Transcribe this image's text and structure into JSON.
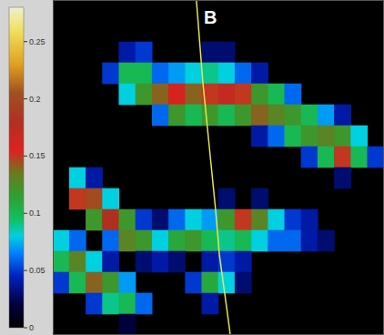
{
  "chart_data": {
    "type": "heatmap",
    "panel_label": "B",
    "xlim": [
      0,
      20
    ],
    "ylim": [
      0,
      16
    ],
    "yticks": [
      1.5,
      3,
      4.5,
      6,
      7.5,
      9,
      10.5,
      12,
      13.5,
      15
    ],
    "grid": true,
    "tick_labels": false,
    "cells": [
      [
        0,
        0,
        0,
        0,
        0,
        0,
        0,
        0,
        0,
        0,
        0,
        0,
        0,
        0,
        0,
        0,
        0,
        0,
        0,
        0
      ],
      [
        0,
        0,
        0,
        0,
        0,
        0,
        0,
        0,
        0,
        0,
        0,
        0,
        0,
        0,
        0,
        0,
        0,
        0,
        0,
        0
      ],
      [
        0,
        0,
        0,
        0,
        0.04,
        0.05,
        0,
        0,
        0,
        0.03,
        0.03,
        0,
        0,
        0,
        0,
        0,
        0,
        0,
        0,
        0
      ],
      [
        0,
        0,
        0,
        0.05,
        0.1,
        0.1,
        0.06,
        0.07,
        0.08,
        0.09,
        0.08,
        0.06,
        0.04,
        0,
        0,
        0,
        0,
        0,
        0,
        0
      ],
      [
        0,
        0,
        0,
        0,
        0.08,
        0.12,
        0.14,
        0.16,
        0.14,
        0.15,
        0.17,
        0.15,
        0.12,
        0.1,
        0.06,
        0,
        0,
        0,
        0,
        0
      ],
      [
        0,
        0,
        0,
        0,
        0,
        0,
        0.06,
        0.12,
        0.1,
        0.12,
        0.1,
        0.12,
        0.14,
        0.13,
        0.12,
        0.1,
        0.07,
        0.04,
        0,
        0
      ],
      [
        0,
        0,
        0,
        0,
        0,
        0,
        0,
        0,
        0,
        0,
        0,
        0,
        0.04,
        0.06,
        0.1,
        0.12,
        0.13,
        0.12,
        0.08,
        0
      ],
      [
        0,
        0,
        0,
        0,
        0,
        0,
        0,
        0,
        0,
        0,
        0,
        0,
        0,
        0,
        0,
        0.05,
        0.1,
        0.15,
        0.1,
        0.05
      ],
      [
        0,
        0.08,
        0.04,
        0,
        0,
        0,
        0,
        0,
        0,
        0,
        0,
        0,
        0,
        0,
        0,
        0,
        0,
        0.03,
        0,
        0
      ],
      [
        0,
        0.15,
        0.2,
        0.08,
        0,
        0,
        0,
        0,
        0,
        0,
        0.03,
        0,
        0.03,
        0,
        0,
        0,
        0,
        0,
        0,
        0
      ],
      [
        0,
        0,
        0.12,
        0.18,
        0.12,
        0.05,
        0.03,
        0.06,
        0.08,
        0.07,
        0.12,
        0.15,
        0.13,
        0.08,
        0.05,
        0.04,
        0,
        0,
        0,
        0
      ],
      [
        0.08,
        0.06,
        0,
        0.06,
        0.13,
        0.12,
        0.08,
        0.11,
        0.12,
        0.1,
        0.09,
        0.1,
        0.08,
        0.06,
        0.06,
        0.04,
        0.03,
        0,
        0,
        0
      ],
      [
        0.1,
        0.13,
        0.08,
        0.04,
        0,
        0.03,
        0.04,
        0.03,
        0,
        0.04,
        0.05,
        0.04,
        0,
        0,
        0,
        0,
        0,
        0,
        0,
        0
      ],
      [
        0.05,
        0.1,
        0.14,
        0.12,
        0.07,
        0,
        0,
        0,
        0.05,
        0.11,
        0.08,
        0.03,
        0,
        0,
        0,
        0,
        0,
        0,
        0,
        0
      ],
      [
        0,
        0,
        0.05,
        0.09,
        0.1,
        0.06,
        0,
        0,
        0,
        0.04,
        0,
        0,
        0,
        0,
        0,
        0,
        0,
        0,
        0,
        0
      ],
      [
        0,
        0,
        0,
        0,
        0.02,
        0,
        0,
        0,
        0,
        0,
        0,
        0,
        0,
        0,
        0,
        0,
        0,
        0,
        0,
        0
      ]
    ],
    "colorbar": {
      "range": [
        0,
        0.28
      ],
      "ticks": [
        0,
        0.05,
        0.1,
        0.15,
        0.2,
        0.25
      ]
    },
    "series": [
      {
        "type": "line",
        "color": "#e6e64a",
        "x": [
          8.67,
          9.06,
          9.39,
          9.83,
          10.06,
          10.44,
          10.72
        ],
        "values": [
          16,
          12.09,
          9.48,
          6,
          3.83,
          1.65,
          0
        ]
      }
    ]
  }
}
